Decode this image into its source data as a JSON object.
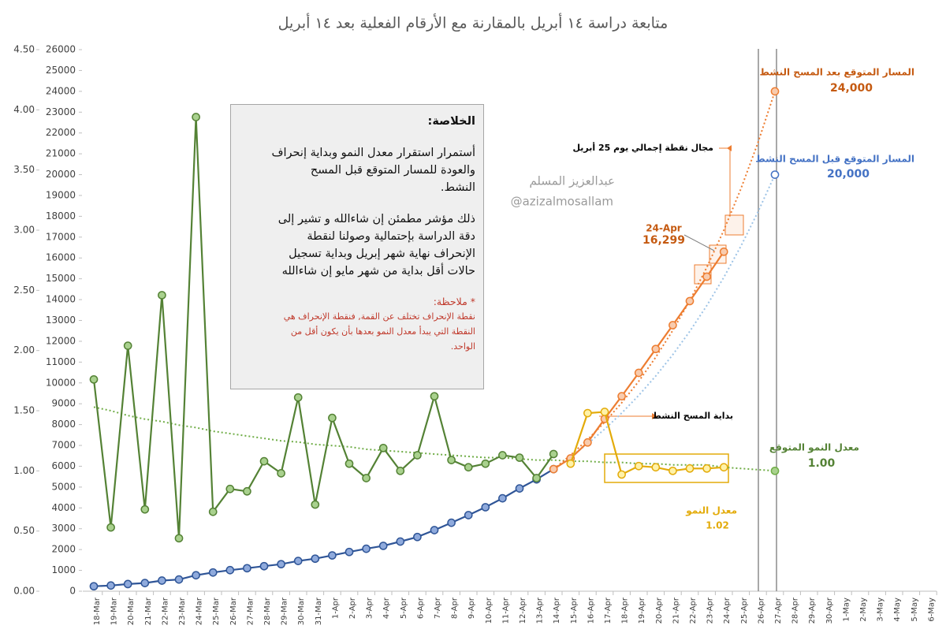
{
  "chart_data": {
    "type": "line",
    "title": "متابعة دراسة ١٤ أبريل بالمقارنة مع الأرقام الفعلية بعد ١٤ أبريل",
    "categories": [
      "18-Mar",
      "19-Mar",
      "20-Mar",
      "21-Mar",
      "22-Mar",
      "23-Mar",
      "24-Mar",
      "25-Mar",
      "26-Mar",
      "27-Mar",
      "28-Mar",
      "29-Mar",
      "30-Mar",
      "31-Mar",
      "1-Apr",
      "2-Apr",
      "3-Apr",
      "4-Apr",
      "5-Apr",
      "6-Apr",
      "7-Apr",
      "8-Apr",
      "9-Apr",
      "10-Apr",
      "11-Apr",
      "12-Apr",
      "13-Apr",
      "14-Apr",
      "15-Apr",
      "16-Apr",
      "17-Apr",
      "18-Apr",
      "19-Apr",
      "20-Apr",
      "21-Apr",
      "22-Apr",
      "23-Apr",
      "24-Apr",
      "25-Apr",
      "26-Apr",
      "27-Apr",
      "28-Apr",
      "29-Apr",
      "30-Apr",
      "1-May",
      "2-May",
      "3-May",
      "4-May",
      "5-May",
      "6-May"
    ],
    "ylim": [
      0,
      26000
    ],
    "yticks": [
      0,
      1000,
      2000,
      3000,
      4000,
      5000,
      6000,
      7000,
      8000,
      9000,
      10000,
      11000,
      12000,
      13000,
      14000,
      15000,
      16000,
      17000,
      18000,
      19000,
      20000,
      21000,
      22000,
      23000,
      24000,
      25000,
      26000
    ],
    "y2lim": [
      0,
      4.5
    ],
    "y2ticks": [
      {
        "value": 0,
        "label": "0.00"
      },
      {
        "value": 0.5,
        "label": "0.50"
      },
      {
        "value": 1,
        "label": "1.00"
      },
      {
        "value": 1.5,
        "label": "1.50"
      },
      {
        "value": 2,
        "label": "2.00"
      },
      {
        "value": 2.5,
        "label": "2.50"
      },
      {
        "value": 3,
        "label": "3.00"
      },
      {
        "value": 3.5,
        "label": "3.50"
      },
      {
        "value": 4,
        "label": "4.00"
      },
      {
        "value": 4.5,
        "label": "4.50"
      }
    ],
    "grid": false,
    "series": [
      {
        "color": "#2f5597",
        "marker_fill": "#8faadc",
        "style": "solid",
        "markers": true,
        "axis": "y",
        "values": [
          238,
          274,
          344,
          392,
          511,
          562,
          767,
          900,
          1012,
          1104,
          1203,
          1299,
          1453,
          1563,
          1720,
          1885,
          2039,
          2179,
          2385,
          2605,
          2932,
          3287,
          3651,
          4033,
          4462,
          4934,
          5369,
          5862,
          null,
          null,
          null,
          null,
          null,
          null,
          null,
          null,
          null,
          null,
          null,
          null,
          null,
          null,
          null,
          null,
          null,
          null,
          null,
          null,
          null,
          null
        ]
      },
      {
        "color": "#ed7d31",
        "marker_fill": "#f8cbad",
        "style": "solid",
        "markers": true,
        "axis": "y",
        "values": [
          null,
          null,
          null,
          null,
          null,
          null,
          null,
          null,
          null,
          null,
          null,
          null,
          null,
          null,
          null,
          null,
          null,
          null,
          null,
          null,
          null,
          null,
          null,
          null,
          null,
          null,
          null,
          5862,
          6380,
          7142,
          8274,
          9362,
          10484,
          11631,
          12772,
          13930,
          15102,
          16299,
          null,
          null,
          null,
          null,
          null,
          null,
          null,
          null,
          null,
          null,
          null,
          null
        ],
        "value_labels": [
          null,
          null,
          null,
          null,
          null,
          null,
          null,
          null,
          null,
          null,
          null,
          null,
          null,
          null,
          null,
          null,
          null,
          null,
          null,
          null,
          null,
          null,
          null,
          null,
          null,
          null,
          null,
          null,
          null,
          null,
          null,
          null,
          null,
          null,
          null,
          null,
          null,
          "16,299",
          null,
          null,
          null,
          null,
          null,
          null,
          null,
          null,
          null,
          null,
          null,
          null
        ]
      },
      {
        "color": "#548235",
        "marker_fill": "#a9d18e",
        "style": "solid",
        "markers": true,
        "axis": "y2",
        "values": [
          1.76,
          0.53,
          2.04,
          0.68,
          2.46,
          0.44,
          3.94,
          0.66,
          0.85,
          0.83,
          1.08,
          0.98,
          1.61,
          0.72,
          1.44,
          1.06,
          0.94,
          1.19,
          1.0,
          1.13,
          1.62,
          1.09,
          1.03,
          1.06,
          1.13,
          1.11,
          0.94,
          1.14,
          null,
          null,
          null,
          null,
          null,
          null,
          null,
          null,
          null,
          null,
          null,
          null,
          null,
          null,
          null,
          null,
          null,
          null,
          null,
          null,
          null,
          null
        ]
      },
      {
        "name": "معدل النمو",
        "color": "#e3ab0a",
        "marker_fill": "#fff2a8",
        "style": "solid",
        "markers": true,
        "axis": "y2",
        "values": [
          null,
          null,
          null,
          null,
          null,
          null,
          null,
          null,
          null,
          null,
          null,
          null,
          null,
          null,
          null,
          null,
          null,
          null,
          null,
          null,
          null,
          null,
          null,
          null,
          null,
          null,
          null,
          null,
          1.06,
          1.48,
          1.49,
          0.97,
          1.04,
          1.03,
          1.0,
          1.02,
          1.02,
          1.03,
          null,
          null,
          null,
          null,
          null,
          null,
          null,
          null,
          null,
          null,
          null,
          null
        ]
      },
      {
        "name": "معدل النمو المتوقع",
        "color": "#70ad47",
        "marker_fill": "#a9d18e",
        "style": "dotted",
        "markers": "last",
        "axis": "y2",
        "values": [
          1.53,
          1.5,
          1.46,
          1.43,
          1.41,
          1.38,
          1.36,
          1.33,
          1.31,
          1.29,
          1.27,
          1.25,
          1.24,
          1.22,
          1.21,
          1.2,
          1.18,
          1.17,
          1.16,
          1.15,
          1.14,
          1.13,
          1.12,
          1.11,
          1.11,
          1.1,
          1.09,
          1.09,
          1.08,
          1.08,
          1.07,
          1.07,
          1.06,
          1.06,
          1.05,
          1.05,
          1.05,
          1.03,
          1.02,
          1.01,
          1.0,
          null,
          null,
          null,
          null,
          null,
          null,
          null,
          null,
          null
        ],
        "value_labels": [
          null,
          null,
          null,
          null,
          null,
          null,
          null,
          null,
          null,
          null,
          null,
          null,
          null,
          null,
          null,
          null,
          null,
          null,
          null,
          null,
          null,
          null,
          null,
          null,
          null,
          null,
          null,
          null,
          null,
          null,
          null,
          null,
          null,
          null,
          null,
          null,
          null,
          null,
          null,
          null,
          "1.00",
          null,
          null,
          null,
          null,
          null,
          null,
          null,
          null,
          null
        ]
      },
      {
        "name": "المسار المتوقع قبل المسح النشط",
        "color": "#9dc3e6",
        "marker_fill": "#ffffff",
        "style": "dotted",
        "markers": "last",
        "axis": "y",
        "values": [
          null,
          null,
          null,
          null,
          null,
          null,
          null,
          null,
          null,
          null,
          null,
          null,
          null,
          null,
          null,
          null,
          null,
          null,
          null,
          null,
          null,
          null,
          null,
          null,
          null,
          null,
          null,
          5862,
          6443,
          7081,
          7782,
          8553,
          9400,
          10331,
          11354,
          12478,
          13714,
          15072,
          16565,
          18205,
          20000,
          null,
          null,
          null,
          null,
          null,
          null,
          null,
          null,
          null
        ],
        "value_labels": [
          null,
          null,
          null,
          null,
          null,
          null,
          null,
          null,
          null,
          null,
          null,
          null,
          null,
          null,
          null,
          null,
          null,
          null,
          null,
          null,
          null,
          null,
          null,
          null,
          null,
          null,
          null,
          null,
          null,
          null,
          null,
          null,
          null,
          null,
          null,
          null,
          null,
          null,
          null,
          null,
          "20,000",
          null,
          null,
          null,
          null,
          null,
          null,
          null,
          null,
          null
        ]
      },
      {
        "name": "المسار المتوقع بعد المسح النشط",
        "color": "#ed7d31",
        "marker_fill": "#f8cbad",
        "style": "dotted",
        "markers": "last",
        "axis": "y",
        "values": [
          null,
          null,
          null,
          null,
          null,
          null,
          null,
          null,
          null,
          null,
          null,
          null,
          null,
          null,
          null,
          null,
          null,
          null,
          null,
          null,
          null,
          null,
          null,
          null,
          null,
          null,
          null,
          5862,
          6533,
          7281,
          8115,
          9044,
          10080,
          11234,
          12520,
          13954,
          15551,
          17332,
          19316,
          21527,
          24000,
          null,
          null,
          null,
          null,
          null,
          null,
          null,
          null,
          null
        ],
        "value_labels": [
          null,
          null,
          null,
          null,
          null,
          null,
          null,
          null,
          null,
          null,
          null,
          null,
          null,
          null,
          null,
          null,
          null,
          null,
          null,
          null,
          null,
          null,
          null,
          null,
          null,
          null,
          null,
          null,
          null,
          null,
          null,
          null,
          null,
          null,
          null,
          null,
          null,
          null,
          null,
          null,
          "24,000",
          null,
          null,
          null,
          null,
          null,
          null,
          null,
          null,
          null
        ]
      }
    ],
    "annotations": {
      "summary_title": "الخلاصة:",
      "summary_lines": [
        "أستمرار استقرار معدل النمو وبداية إنحراف",
        "والعودة للمسار المتوقع قبل المسح",
        "النشط.",
        "ذلك مؤشر مطمئن إن شاءالله و تشير إلى",
        "دقة الدراسة بإحتمالية وصولنا لنقطة",
        "الإنحراف نهاية شهر إبريل وبداية تسجيل",
        "حالات أقل بداية من شهر مايو إن شاءالله"
      ],
      "note_title": "* ملاحظة:",
      "note_lines": [
        "نقطة الإنحراف تختلف عن القمة, فنقطة الإنحراف هي",
        "النقطة التي يبدأ معدل النمو بعدها بأن يكون أقل من",
        "الواحد."
      ],
      "watermark_name": "عبدالعزيز المسلم",
      "watermark_handle": "@azizalmosallam",
      "day25_range": "مجال نقطة إجمالي يوم 25 أبريل",
      "active_survey_start": "بداية المسح النشط",
      "growth_rate_value": "1.02"
    }
  }
}
